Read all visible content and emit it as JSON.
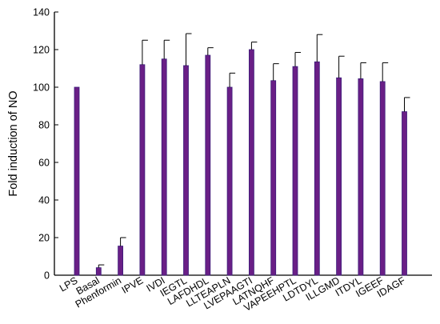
{
  "chart_data": {
    "type": "bar",
    "ylabel": "Fold induction of NO",
    "xlabel": "",
    "ylim": [
      0,
      140
    ],
    "yticks": [
      0,
      20,
      40,
      60,
      80,
      100,
      120,
      140
    ],
    "grid": false,
    "bar_color": "#6a1f86",
    "bar_edge_color": "#3b1c7a",
    "categories": [
      "LPS",
      "Basal",
      "Phenformin",
      "IPVE",
      "IVDI",
      "IEGTL",
      "LAFDHDL",
      "LLTEAPLN",
      "LVEPAAGTI",
      "LATNQHF",
      "VAPEEHPTL",
      "LDTDYL",
      "ILLGMD",
      "ITDYL",
      "IGEEF",
      "IDAGF"
    ],
    "values": [
      100,
      4,
      15.5,
      112,
      115,
      111.5,
      117,
      100,
      120,
      103.5,
      111,
      113.5,
      105,
      104.5,
      103,
      87
    ],
    "errors": [
      0,
      1.5,
      4.5,
      13,
      10,
      17,
      4,
      7.5,
      4,
      9,
      7.5,
      14.5,
      11.5,
      8.5,
      10,
      7.5
    ]
  }
}
